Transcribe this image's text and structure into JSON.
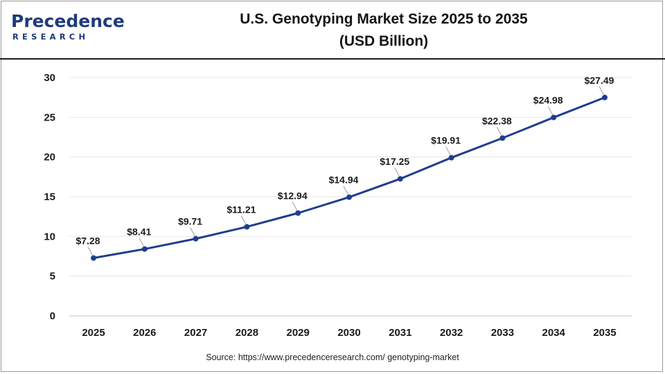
{
  "logo": {
    "brand": "Precedence",
    "sub": "RESEARCH"
  },
  "header": {
    "title_line1": "U.S. Genotyping Market Size 2025 to 2035",
    "title_line2": "(USD Billion)"
  },
  "source": "Source: https://www.precedenceresearch.com/ genotyping-market",
  "colors": {
    "line": "#1f3d8f",
    "grid": "#e6e6e6",
    "brand": "#1f3b7a"
  },
  "chart_data": {
    "type": "line",
    "title": "U.S. Genotyping Market Size 2025 to 2035 (USD Billion)",
    "categories": [
      "2025",
      "2026",
      "2027",
      "2028",
      "2029",
      "2030",
      "2031",
      "2032",
      "2033",
      "2034",
      "2035"
    ],
    "series": [
      {
        "values": [
          7.28,
          8.41,
          9.71,
          11.21,
          12.94,
          14.94,
          17.25,
          19.91,
          22.38,
          24.98,
          27.49
        ]
      }
    ],
    "data_labels": [
      "$7.28",
      "$8.41",
      "$9.71",
      "$11.21",
      "$12.94",
      "$14.94",
      "$17.25",
      "$19.91",
      "$22.38",
      "$24.98",
      "$27.49"
    ],
    "yticks": [
      0,
      5,
      10,
      15,
      20,
      25,
      30
    ],
    "ylim": [
      0,
      30
    ],
    "xlabel": "",
    "ylabel": "",
    "grid": true,
    "legend": "none"
  }
}
